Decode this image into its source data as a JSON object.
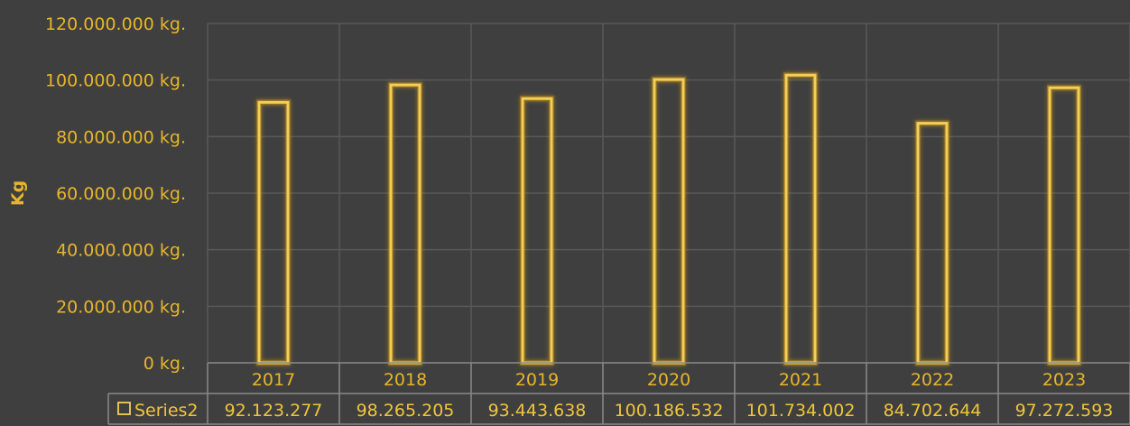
{
  "chart_data": {
    "type": "bar",
    "title": "",
    "ylabel": "Kg",
    "xlabel": "",
    "ylim": [
      0,
      120000000
    ],
    "y_ticks": [
      {
        "value": 0,
        "label": "0 kg."
      },
      {
        "value": 20000000,
        "label": "20.000.000 kg."
      },
      {
        "value": 40000000,
        "label": "40.000.000 kg."
      },
      {
        "value": 60000000,
        "label": "60.000.000 kg."
      },
      {
        "value": 80000000,
        "label": "80.000.000 kg."
      },
      {
        "value": 100000000,
        "label": "100.000.000 kg."
      },
      {
        "value": 120000000,
        "label": "120.000.000 kg."
      }
    ],
    "categories": [
      "2017",
      "2018",
      "2019",
      "2020",
      "2021",
      "2022",
      "2023"
    ],
    "series": [
      {
        "name": "Series2",
        "values": [
          92123277,
          98265205,
          93443638,
          100186532,
          101734002,
          84702644,
          97272593
        ],
        "value_labels": [
          "92.123.277",
          "98.265.205",
          "93.443.638",
          "100.186.532",
          "101.734.002",
          "84.702.644",
          "97.272.593"
        ]
      }
    ],
    "grid": true,
    "data_table": true,
    "colors": {
      "background": "#3f3f3f",
      "grid": "#595959",
      "bar_outline": "#f5cf55",
      "bar_glow": "#c9961c",
      "text": "#e8b52a",
      "table_border": "#8a8a8a"
    }
  }
}
